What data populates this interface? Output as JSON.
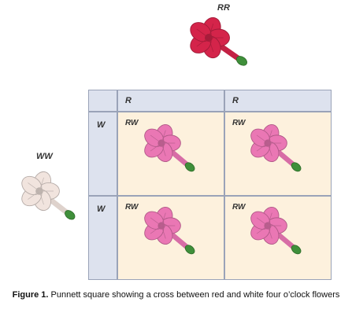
{
  "parents": {
    "top_genotype": "RR",
    "left_genotype": "WW"
  },
  "punnett": {
    "col_alleles": [
      "R",
      "R"
    ],
    "row_alleles": [
      "W",
      "W"
    ],
    "cells": [
      [
        "RW",
        "RW"
      ],
      [
        "RW",
        "RW"
      ]
    ]
  },
  "caption": {
    "label": "Figure 1.",
    "text": "Punnett square showing a cross between red and white four o’clock flowers"
  },
  "colors": {
    "red_flower": "#d4244a",
    "white_flower": "#f1e4de",
    "pink_flower": "#ea77b4",
    "header_fill": "#dde2ee",
    "cell_fill": "#fdf1dd"
  }
}
